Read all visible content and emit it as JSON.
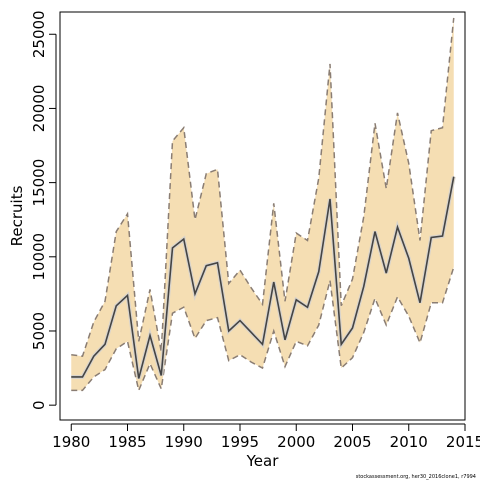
{
  "chart_data": {
    "type": "line",
    "xlabel": "Year",
    "ylabel": "Recruits",
    "xlim": [
      1979,
      2015
    ],
    "ylim": [
      -1000,
      26500
    ],
    "xticks": [
      1980,
      1985,
      1990,
      1995,
      2000,
      2005,
      2010,
      2015
    ],
    "yticks": [
      0,
      5000,
      10000,
      15000,
      20000,
      25000
    ],
    "grid": false,
    "x": [
      1980,
      1981,
      1982,
      1983,
      1984,
      1985,
      1986,
      1987,
      1988,
      1989,
      1990,
      1991,
      1992,
      1993,
      1994,
      1995,
      1996,
      1997,
      1998,
      1999,
      2000,
      2001,
      2002,
      2003,
      2004,
      2005,
      2006,
      2007,
      2008,
      2009,
      2010,
      2011,
      2012,
      2013,
      2014
    ],
    "series": [
      {
        "role": "estimate",
        "values": [
          1900,
          1900,
          3300,
          4100,
          6700,
          7400,
          1800,
          4700,
          2000,
          10600,
          11200,
          7500,
          9400,
          9600,
          5000,
          5700,
          4900,
          4100,
          8300,
          4400,
          7100,
          6600,
          9000,
          13900,
          4100,
          5200,
          8000,
          11700,
          8900,
          12000,
          9900,
          6900,
          11300,
          11400,
          15400
        ]
      },
      {
        "role": "upper",
        "values": [
          3400,
          3300,
          5600,
          7000,
          11700,
          12900,
          4300,
          7800,
          3600,
          17800,
          18700,
          12500,
          15600,
          15900,
          8200,
          9100,
          7900,
          6800,
          13600,
          7000,
          11600,
          11100,
          15300,
          23000,
          6700,
          8500,
          12700,
          19000,
          14600,
          19700,
          16300,
          11100,
          18500,
          18700,
          26100
        ]
      },
      {
        "role": "lower",
        "values": [
          1000,
          1000,
          1900,
          2400,
          3800,
          4300,
          1000,
          2800,
          1100,
          6200,
          6600,
          4500,
          5700,
          5900,
          3000,
          3400,
          2900,
          2500,
          5000,
          2600,
          4300,
          4000,
          5400,
          8400,
          2500,
          3200,
          4900,
          7200,
          5400,
          7300,
          6000,
          4200,
          6900,
          6900,
          9300
        ]
      }
    ],
    "band_color": "#f5deb3",
    "line_color": "#444444",
    "band_edge_color": "#8a7d73",
    "footnote": "stockassessment.org, her30_2016clone1, r7994"
  }
}
